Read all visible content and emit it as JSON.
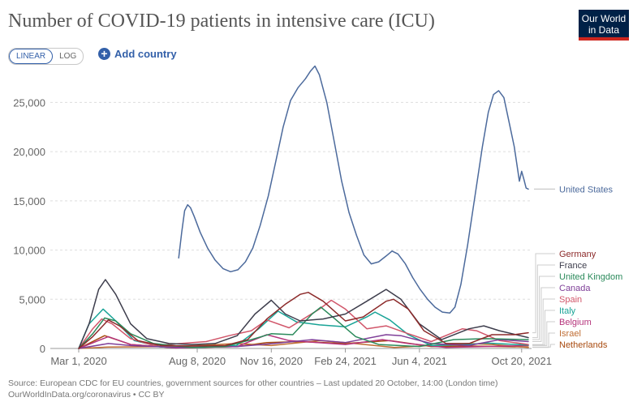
{
  "header": {
    "title": "Number of COVID-19 patients in intensive care (ICU)",
    "logo_line1": "Our World",
    "logo_line2": "in Data"
  },
  "controls": {
    "linear_label": "LINEAR",
    "log_label": "LOG",
    "add_country_label": "Add country"
  },
  "footer": {
    "line1": "Source: European CDC for EU countries, government sources for other countries – Last updated 20 October, 14:00 (London time)",
    "line2": "OurWorldInData.org/coronavirus • CC BY"
  },
  "chart_data": {
    "type": "line",
    "ylim": [
      0,
      28000
    ],
    "yticks": [
      0,
      5000,
      10000,
      15000,
      20000,
      25000
    ],
    "ytick_labels": [
      "0",
      "5,000",
      "10,000",
      "15,000",
      "20,000",
      "25,000"
    ],
    "xticks": [
      {
        "date": "2020-03-01",
        "label": "Mar 1, 2020"
      },
      {
        "date": "2020-08-08",
        "label": "Aug 8, 2020"
      },
      {
        "date": "2020-11-16",
        "label": "Nov 16, 2020"
      },
      {
        "date": "2021-02-24",
        "label": "Feb 24, 2021"
      },
      {
        "date": "2021-06-04",
        "label": "Jun 4, 2021"
      },
      {
        "date": "2021-10-20",
        "label": "Oct 20, 2021"
      }
    ],
    "series": [
      {
        "name": "United States",
        "color": "#4c6a9c",
        "points": [
          [
            "2020-07-14",
            9200
          ],
          [
            "2020-07-18",
            11800
          ],
          [
            "2020-07-22",
            14000
          ],
          [
            "2020-07-26",
            14600
          ],
          [
            "2020-07-30",
            14300
          ],
          [
            "2020-08-04",
            13400
          ],
          [
            "2020-08-12",
            11800
          ],
          [
            "2020-08-22",
            10200
          ],
          [
            "2020-09-01",
            9000
          ],
          [
            "2020-09-12",
            8100
          ],
          [
            "2020-09-22",
            7800
          ],
          [
            "2020-10-02",
            8000
          ],
          [
            "2020-10-12",
            8800
          ],
          [
            "2020-10-22",
            10200
          ],
          [
            "2020-11-01",
            12500
          ],
          [
            "2020-11-12",
            15500
          ],
          [
            "2020-11-22",
            19000
          ],
          [
            "2020-12-02",
            22500
          ],
          [
            "2020-12-12",
            25200
          ],
          [
            "2020-12-22",
            26500
          ],
          [
            "2021-01-01",
            27400
          ],
          [
            "2021-01-08",
            28200
          ],
          [
            "2021-01-14",
            28700
          ],
          [
            "2021-01-20",
            27800
          ],
          [
            "2021-01-30",
            25000
          ],
          [
            "2021-02-09",
            21000
          ],
          [
            "2021-02-19",
            17000
          ],
          [
            "2021-03-01",
            13800
          ],
          [
            "2021-03-11",
            11500
          ],
          [
            "2021-03-21",
            9500
          ],
          [
            "2021-03-31",
            8600
          ],
          [
            "2021-04-10",
            8800
          ],
          [
            "2021-04-20",
            9400
          ],
          [
            "2021-04-28",
            9900
          ],
          [
            "2021-05-06",
            9600
          ],
          [
            "2021-05-16",
            8600
          ],
          [
            "2021-05-26",
            7200
          ],
          [
            "2021-06-05",
            6000
          ],
          [
            "2021-06-15",
            5000
          ],
          [
            "2021-06-25",
            4200
          ],
          [
            "2021-07-05",
            3700
          ],
          [
            "2021-07-15",
            3600
          ],
          [
            "2021-07-22",
            4200
          ],
          [
            "2021-07-30",
            6500
          ],
          [
            "2021-08-08",
            10500
          ],
          [
            "2021-08-18",
            15500
          ],
          [
            "2021-08-28",
            20500
          ],
          [
            "2021-09-05",
            24000
          ],
          [
            "2021-09-12",
            25800
          ],
          [
            "2021-09-19",
            26200
          ],
          [
            "2021-09-26",
            25500
          ],
          [
            "2021-10-03",
            23000
          ],
          [
            "2021-10-10",
            20500
          ],
          [
            "2021-10-14",
            18500
          ],
          [
            "2021-10-17",
            17000
          ],
          [
            "2021-10-20",
            18000
          ],
          [
            "2021-10-23",
            17200
          ],
          [
            "2021-10-26",
            16300
          ],
          [
            "2021-10-29",
            16200
          ]
        ]
      },
      {
        "name": "Germany",
        "color": "#8c2a2a",
        "points": [
          [
            "2020-03-01",
            0
          ],
          [
            "2020-03-20",
            1200
          ],
          [
            "2020-04-10",
            2900
          ],
          [
            "2020-04-25",
            2300
          ],
          [
            "2020-05-20",
            800
          ],
          [
            "2020-06-20",
            300
          ],
          [
            "2020-08-01",
            250
          ],
          [
            "2020-09-15",
            300
          ],
          [
            "2020-10-15",
            900
          ],
          [
            "2020-11-10",
            3000
          ],
          [
            "2020-12-05",
            4500
          ],
          [
            "2020-12-25",
            5500
          ],
          [
            "2021-01-05",
            5700
          ],
          [
            "2021-01-25",
            4800
          ],
          [
            "2021-02-24",
            2800
          ],
          [
            "2021-03-20",
            3200
          ],
          [
            "2021-04-20",
            4800
          ],
          [
            "2021-04-30",
            5000
          ],
          [
            "2021-05-20",
            4000
          ],
          [
            "2021-06-10",
            1800
          ],
          [
            "2021-07-10",
            500
          ],
          [
            "2021-08-10",
            500
          ],
          [
            "2021-09-10",
            1400
          ],
          [
            "2021-10-10",
            1400
          ],
          [
            "2021-10-29",
            1600
          ]
        ]
      },
      {
        "name": "France",
        "color": "#3d3d4c",
        "points": [
          [
            "2020-03-01",
            0
          ],
          [
            "2020-03-15",
            2500
          ],
          [
            "2020-03-28",
            6000
          ],
          [
            "2020-04-06",
            7000
          ],
          [
            "2020-04-20",
            5500
          ],
          [
            "2020-05-10",
            2500
          ],
          [
            "2020-06-01",
            1000
          ],
          [
            "2020-07-01",
            500
          ],
          [
            "2020-08-01",
            400
          ],
          [
            "2020-09-01",
            500
          ],
          [
            "2020-10-01",
            1300
          ],
          [
            "2020-10-25",
            3500
          ],
          [
            "2020-11-16",
            4900
          ],
          [
            "2020-12-05",
            3500
          ],
          [
            "2020-12-25",
            2800
          ],
          [
            "2021-01-25",
            3000
          ],
          [
            "2021-02-24",
            3500
          ],
          [
            "2021-03-25",
            4800
          ],
          [
            "2021-04-20",
            6000
          ],
          [
            "2021-05-10",
            5000
          ],
          [
            "2021-06-04",
            2500
          ],
          [
            "2021-07-04",
            900
          ],
          [
            "2021-08-10",
            2000
          ],
          [
            "2021-08-30",
            2300
          ],
          [
            "2021-09-20",
            1800
          ],
          [
            "2021-10-29",
            1100
          ]
        ]
      },
      {
        "name": "United Kingdom",
        "color": "#2b8a5b",
        "points": [
          [
            "2020-03-01",
            0
          ],
          [
            "2020-03-20",
            1500
          ],
          [
            "2020-04-05",
            3100
          ],
          [
            "2020-04-20",
            2800
          ],
          [
            "2020-05-10",
            1500
          ],
          [
            "2020-06-10",
            500
          ],
          [
            "2020-08-01",
            100
          ],
          [
            "2020-09-15",
            200
          ],
          [
            "2020-10-20",
            900
          ],
          [
            "2020-11-16",
            1500
          ],
          [
            "2020-12-15",
            1400
          ],
          [
            "2021-01-10",
            3500
          ],
          [
            "2021-01-22",
            4200
          ],
          [
            "2021-02-10",
            3000
          ],
          [
            "2021-03-10",
            1200
          ],
          [
            "2021-04-10",
            400
          ],
          [
            "2021-06-04",
            200
          ],
          [
            "2021-07-20",
            900
          ],
          [
            "2021-09-01",
            1000
          ],
          [
            "2021-10-29",
            900
          ]
        ]
      },
      {
        "name": "Canada",
        "color": "#7f3f98",
        "points": [
          [
            "2020-03-01",
            0
          ],
          [
            "2020-04-10",
            500
          ],
          [
            "2020-05-10",
            300
          ],
          [
            "2020-07-10",
            100
          ],
          [
            "2020-10-01",
            200
          ],
          [
            "2020-11-20",
            500
          ],
          [
            "2021-01-10",
            900
          ],
          [
            "2021-02-24",
            600
          ],
          [
            "2021-04-20",
            1400
          ],
          [
            "2021-05-10",
            1300
          ],
          [
            "2021-06-20",
            500
          ],
          [
            "2021-08-10",
            300
          ],
          [
            "2021-09-20",
            900
          ],
          [
            "2021-10-29",
            700
          ]
        ]
      },
      {
        "name": "Spain",
        "color": "#d1566a",
        "points": [
          [
            "2020-03-01",
            0
          ],
          [
            "2020-03-20",
            2000
          ],
          [
            "2020-04-01",
            3000
          ],
          [
            "2020-04-15",
            2500
          ],
          [
            "2020-05-10",
            1000
          ],
          [
            "2020-06-10",
            300
          ],
          [
            "2020-08-20",
            700
          ],
          [
            "2020-09-20",
            1300
          ],
          [
            "2020-10-20",
            1800
          ],
          [
            "2020-11-10",
            2900
          ],
          [
            "2020-12-10",
            2100
          ],
          [
            "2021-01-20",
            4000
          ],
          [
            "2021-02-05",
            4900
          ],
          [
            "2021-02-24",
            4000
          ],
          [
            "2021-03-25",
            2000
          ],
          [
            "2021-04-20",
            2300
          ],
          [
            "2021-05-20",
            1500
          ],
          [
            "2021-06-20",
            700
          ],
          [
            "2021-08-01",
            2000
          ],
          [
            "2021-08-20",
            1800
          ],
          [
            "2021-09-20",
            800
          ],
          [
            "2021-10-29",
            400
          ]
        ]
      },
      {
        "name": "Italy",
        "color": "#18a396",
        "points": [
          [
            "2020-03-01",
            0
          ],
          [
            "2020-03-15",
            2500
          ],
          [
            "2020-04-03",
            4000
          ],
          [
            "2020-04-20",
            2800
          ],
          [
            "2020-05-15",
            800
          ],
          [
            "2020-06-20",
            150
          ],
          [
            "2020-08-10",
            100
          ],
          [
            "2020-09-30",
            300
          ],
          [
            "2020-10-30",
            2000
          ],
          [
            "2020-11-25",
            3800
          ],
          [
            "2020-12-20",
            2700
          ],
          [
            "2021-01-20",
            2400
          ],
          [
            "2021-02-24",
            2200
          ],
          [
            "2021-03-25",
            3200
          ],
          [
            "2021-04-05",
            3700
          ],
          [
            "2021-04-25",
            2900
          ],
          [
            "2021-05-20",
            1400
          ],
          [
            "2021-06-20",
            300
          ],
          [
            "2021-08-10",
            400
          ],
          [
            "2021-09-01",
            550
          ],
          [
            "2021-10-29",
            350
          ]
        ]
      },
      {
        "name": "Belgium",
        "color": "#b5337b",
        "points": [
          [
            "2020-03-01",
            0
          ],
          [
            "2020-04-10",
            1200
          ],
          [
            "2020-05-10",
            400
          ],
          [
            "2020-07-10",
            50
          ],
          [
            "2020-10-01",
            200
          ],
          [
            "2020-11-10",
            1400
          ],
          [
            "2020-12-10",
            800
          ],
          [
            "2021-02-24",
            400
          ],
          [
            "2021-04-15",
            900
          ],
          [
            "2021-05-20",
            500
          ],
          [
            "2021-07-10",
            100
          ],
          [
            "2021-10-29",
            300
          ]
        ]
      },
      {
        "name": "Israel",
        "color": "#c06d33",
        "points": [
          [
            "2020-03-01",
            0
          ],
          [
            "2020-04-10",
            150
          ],
          [
            "2020-07-10",
            200
          ],
          [
            "2020-10-01",
            500
          ],
          [
            "2020-11-16",
            300
          ],
          [
            "2021-01-20",
            800
          ],
          [
            "2021-02-24",
            600
          ],
          [
            "2021-05-01",
            100
          ],
          [
            "2021-08-10",
            500
          ],
          [
            "2021-09-10",
            400
          ],
          [
            "2021-10-29",
            100
          ]
        ]
      },
      {
        "name": "Netherlands",
        "color": "#a84a0f",
        "points": [
          [
            "2020-03-01",
            0
          ],
          [
            "2020-04-05",
            1300
          ],
          [
            "2020-05-10",
            400
          ],
          [
            "2020-07-10",
            50
          ],
          [
            "2020-10-01",
            200
          ],
          [
            "2020-11-10",
            600
          ],
          [
            "2020-12-25",
            700
          ],
          [
            "2021-02-24",
            500
          ],
          [
            "2021-04-25",
            800
          ],
          [
            "2021-06-20",
            200
          ],
          [
            "2021-08-10",
            250
          ],
          [
            "2021-10-29",
            150
          ]
        ]
      }
    ]
  }
}
